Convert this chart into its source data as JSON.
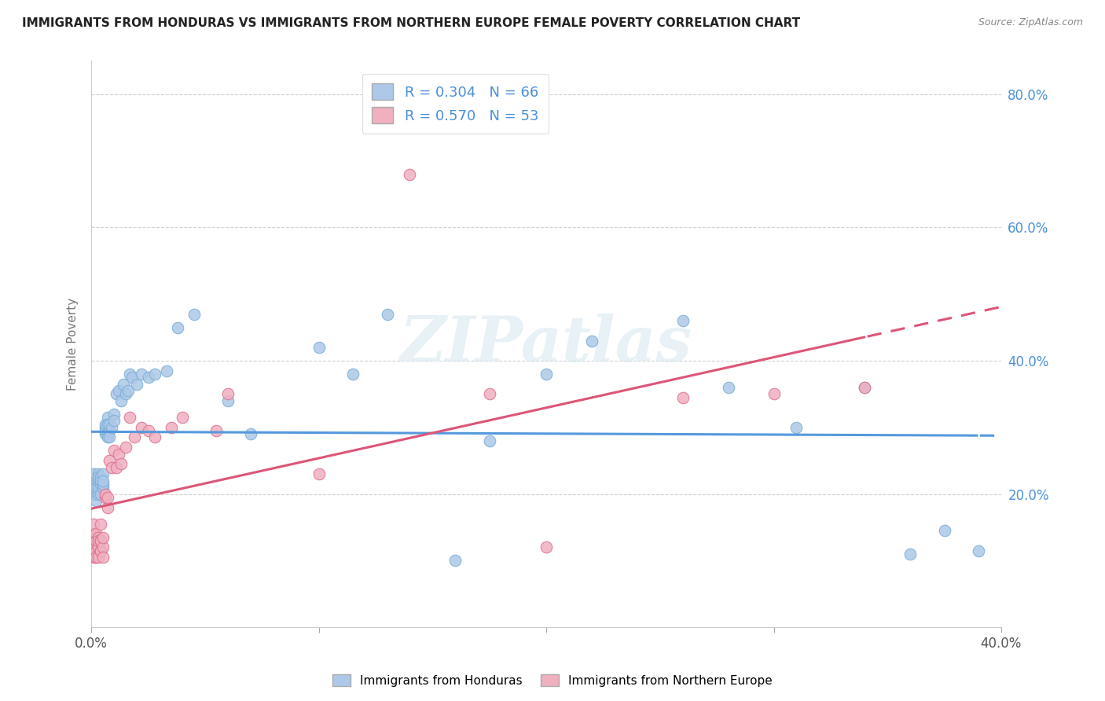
{
  "title": "IMMIGRANTS FROM HONDURAS VS IMMIGRANTS FROM NORTHERN EUROPE FEMALE POVERTY CORRELATION CHART",
  "source": "Source: ZipAtlas.com",
  "ylabel": "Female Poverty",
  "xlim": [
    0.0,
    0.4
  ],
  "ylim": [
    0.0,
    0.85
  ],
  "xticks": [
    0.0,
    0.1,
    0.2,
    0.3,
    0.4
  ],
  "xtick_labels_edge": [
    "0.0%",
    "",
    "",
    "",
    "40.0%"
  ],
  "yticks_right": [
    0.2,
    0.4,
    0.6,
    0.8
  ],
  "ytick_labels_right": [
    "20.0%",
    "40.0%",
    "60.0%",
    "80.0%"
  ],
  "grid_color": "#cccccc",
  "background_color": "#ffffff",
  "series1_name": "Immigrants from Honduras",
  "series1_color": "#adc8e8",
  "series1_edge_color": "#7aaed4",
  "series1_R": 0.304,
  "series1_N": 66,
  "series1_trend_color": "#5599dd",
  "series2_name": "Immigrants from Northern Europe",
  "series2_color": "#f0b0c0",
  "series2_edge_color": "#dd7090",
  "series2_R": 0.57,
  "series2_N": 53,
  "series2_trend_color": "#dd5577",
  "legend_R_color": "#4a90d9",
  "watermark": "ZIPatlas",
  "series1_x": [
    0.001,
    0.001,
    0.001,
    0.002,
    0.002,
    0.002,
    0.002,
    0.002,
    0.003,
    0.003,
    0.003,
    0.003,
    0.003,
    0.004,
    0.004,
    0.004,
    0.004,
    0.005,
    0.005,
    0.005,
    0.005,
    0.006,
    0.006,
    0.006,
    0.006,
    0.007,
    0.007,
    0.007,
    0.007,
    0.008,
    0.008,
    0.008,
    0.009,
    0.01,
    0.01,
    0.011,
    0.012,
    0.013,
    0.014,
    0.015,
    0.016,
    0.017,
    0.018,
    0.02,
    0.022,
    0.025,
    0.028,
    0.033,
    0.038,
    0.045,
    0.06,
    0.07,
    0.1,
    0.115,
    0.13,
    0.16,
    0.175,
    0.2,
    0.22,
    0.26,
    0.28,
    0.31,
    0.34,
    0.36,
    0.375,
    0.39
  ],
  "series1_y": [
    0.23,
    0.2,
    0.21,
    0.22,
    0.19,
    0.205,
    0.215,
    0.21,
    0.2,
    0.215,
    0.23,
    0.21,
    0.225,
    0.2,
    0.215,
    0.225,
    0.22,
    0.21,
    0.215,
    0.23,
    0.22,
    0.29,
    0.3,
    0.295,
    0.305,
    0.29,
    0.315,
    0.305,
    0.285,
    0.295,
    0.305,
    0.285,
    0.3,
    0.32,
    0.31,
    0.35,
    0.355,
    0.34,
    0.365,
    0.35,
    0.355,
    0.38,
    0.375,
    0.365,
    0.38,
    0.375,
    0.38,
    0.385,
    0.45,
    0.47,
    0.34,
    0.29,
    0.42,
    0.38,
    0.47,
    0.1,
    0.28,
    0.38,
    0.43,
    0.46,
    0.36,
    0.3,
    0.36,
    0.11,
    0.145,
    0.115
  ],
  "series2_x": [
    0.001,
    0.001,
    0.001,
    0.001,
    0.001,
    0.001,
    0.002,
    0.002,
    0.002,
    0.002,
    0.002,
    0.002,
    0.002,
    0.003,
    0.003,
    0.003,
    0.003,
    0.003,
    0.004,
    0.004,
    0.004,
    0.004,
    0.004,
    0.005,
    0.005,
    0.005,
    0.006,
    0.006,
    0.007,
    0.007,
    0.008,
    0.009,
    0.01,
    0.011,
    0.012,
    0.013,
    0.015,
    0.017,
    0.019,
    0.022,
    0.025,
    0.028,
    0.035,
    0.04,
    0.055,
    0.06,
    0.1,
    0.14,
    0.175,
    0.2,
    0.26,
    0.3,
    0.34
  ],
  "series2_y": [
    0.14,
    0.155,
    0.12,
    0.13,
    0.11,
    0.105,
    0.135,
    0.12,
    0.105,
    0.14,
    0.115,
    0.13,
    0.105,
    0.12,
    0.135,
    0.105,
    0.12,
    0.13,
    0.115,
    0.13,
    0.155,
    0.115,
    0.13,
    0.12,
    0.105,
    0.135,
    0.195,
    0.2,
    0.18,
    0.195,
    0.25,
    0.24,
    0.265,
    0.24,
    0.26,
    0.245,
    0.27,
    0.315,
    0.285,
    0.3,
    0.295,
    0.285,
    0.3,
    0.315,
    0.295,
    0.35,
    0.23,
    0.68,
    0.35,
    0.12,
    0.345,
    0.35,
    0.36
  ],
  "trend1_x_start": 0.0,
  "trend1_x_end": 0.4,
  "trend1_x_dash_start": 0.39,
  "trend2_x_start": 0.0,
  "trend2_x_end": 0.4,
  "trend2_x_dash_start": 0.34
}
